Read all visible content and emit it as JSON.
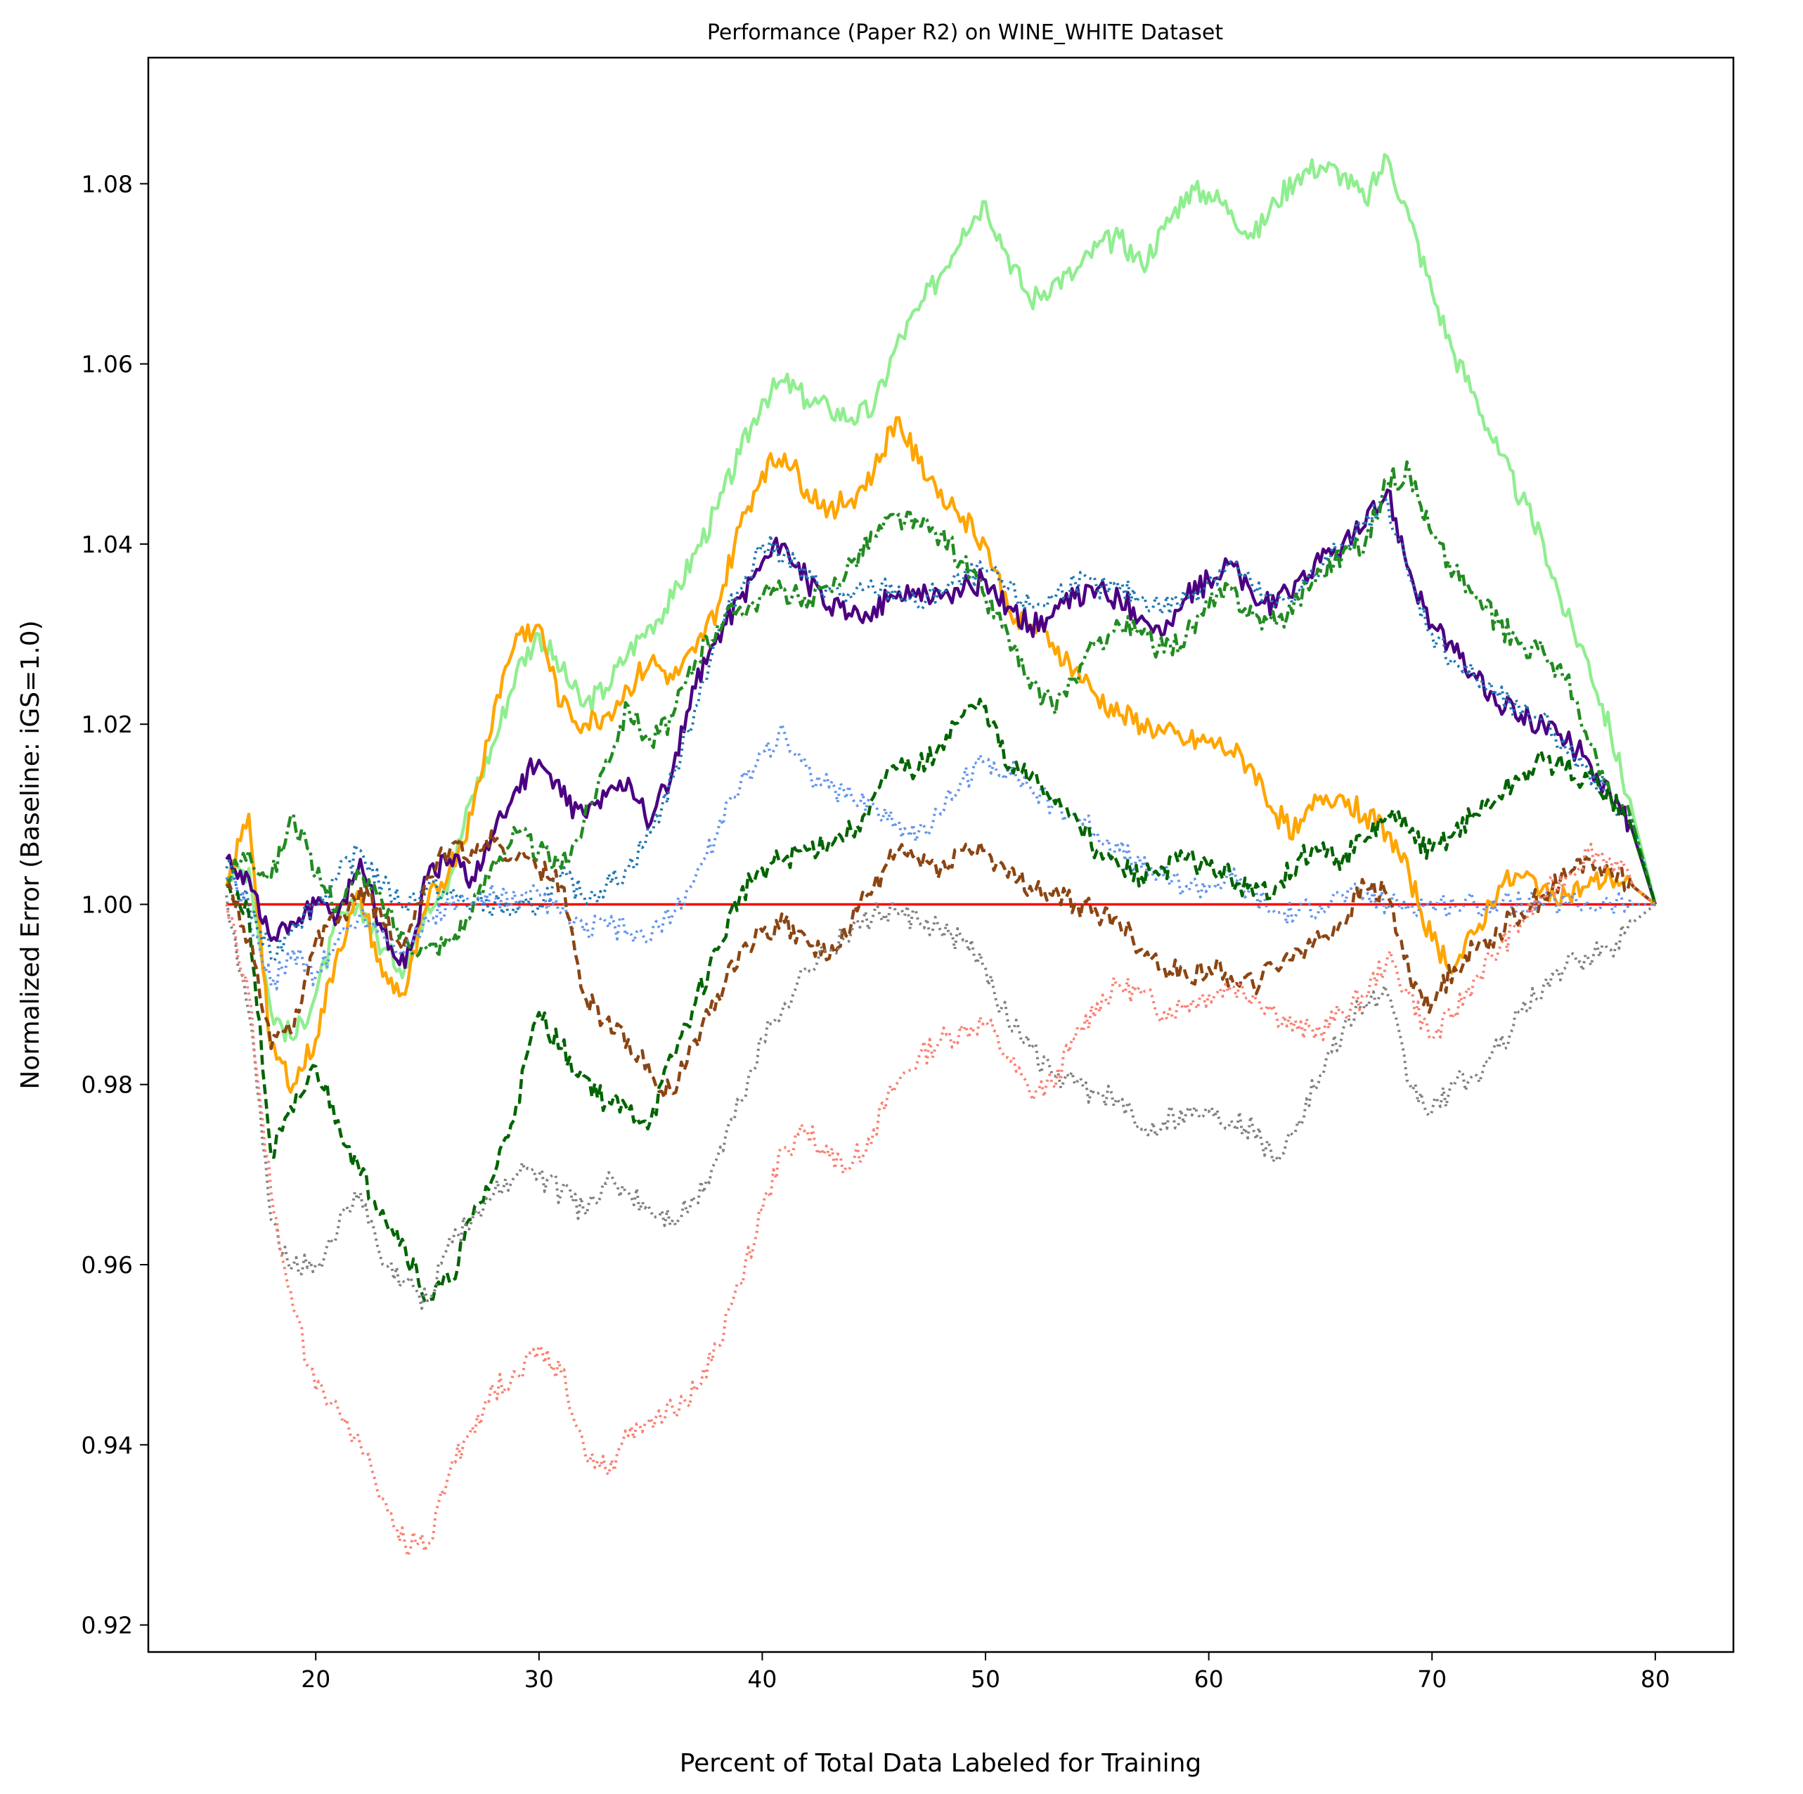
{
  "chart_data": {
    "type": "line",
    "title": "Performance (Paper R2) on WINE_WHITE Dataset",
    "xlabel": "Percent of Total Data Labeled for Training",
    "ylabel": "Normalized Error (Baseline: iGS=1.0)",
    "xlim": [
      12.5,
      83.5
    ],
    "ylim": [
      0.917,
      1.094
    ],
    "x_ticks": [
      20,
      30,
      40,
      50,
      60,
      70,
      80
    ],
    "x_tick_labels": [
      "20",
      "30",
      "40",
      "50",
      "60",
      "70",
      "80"
    ],
    "y_ticks": [
      0.92,
      0.94,
      0.96,
      0.98,
      1.0,
      1.02,
      1.04,
      1.06,
      1.08
    ],
    "y_tick_labels": [
      "0.92",
      "0.94",
      "0.96",
      "0.98",
      "1.00",
      "1.02",
      "1.04",
      "1.06",
      "1.08"
    ],
    "grid": false,
    "legend": "none",
    "x": [
      16,
      17,
      18,
      19,
      20,
      21,
      22,
      23,
      24,
      25,
      26,
      27,
      28,
      29,
      30,
      31,
      32,
      33,
      34,
      35,
      36,
      37,
      38,
      39,
      40,
      41,
      42,
      43,
      44,
      45,
      46,
      47,
      48,
      49,
      50,
      51,
      52,
      53,
      54,
      55,
      56,
      57,
      58,
      59,
      60,
      61,
      62,
      63,
      64,
      65,
      66,
      67,
      68,
      69,
      70,
      71,
      72,
      73,
      74,
      75,
      76,
      77,
      78,
      79,
      80
    ],
    "series": [
      {
        "color": "#ff0000",
        "dash": "solid",
        "width": 3.6,
        "values": [
          1.0,
          1.0,
          1.0,
          1.0,
          1.0,
          1.0,
          1.0,
          1.0,
          1.0,
          1.0,
          1.0,
          1.0,
          1.0,
          1.0,
          1.0,
          1.0,
          1.0,
          1.0,
          1.0,
          1.0,
          1.0,
          1.0,
          1.0,
          1.0,
          1.0,
          1.0,
          1.0,
          1.0,
          1.0,
          1.0,
          1.0,
          1.0,
          1.0,
          1.0,
          1.0,
          1.0,
          1.0,
          1.0,
          1.0,
          1.0,
          1.0,
          1.0,
          1.0,
          1.0,
          1.0,
          1.0,
          1.0,
          1.0,
          1.0,
          1.0,
          1.0,
          1.0,
          1.0,
          1.0,
          1.0,
          1.0,
          1.0,
          1.0,
          1.0,
          1.0,
          1.0,
          1.0,
          1.0,
          1.0,
          1.0
        ]
      },
      {
        "color": "#90ee90",
        "dash": "solid",
        "width": 4.5,
        "values": [
          1.003,
          1.004,
          0.988,
          0.985,
          0.99,
          0.998,
          1.0,
          0.995,
          0.993,
          1.0,
          1.003,
          1.012,
          1.018,
          1.026,
          1.03,
          1.026,
          1.022,
          1.024,
          1.028,
          1.031,
          1.034,
          1.039,
          1.044,
          1.05,
          1.056,
          1.058,
          1.056,
          1.055,
          1.054,
          1.055,
          1.062,
          1.066,
          1.07,
          1.075,
          1.078,
          1.072,
          1.067,
          1.069,
          1.07,
          1.073,
          1.074,
          1.071,
          1.075,
          1.079,
          1.079,
          1.077,
          1.074,
          1.078,
          1.081,
          1.082,
          1.081,
          1.078,
          1.083,
          1.076,
          1.068,
          1.061,
          1.056,
          1.05,
          1.045,
          1.04,
          1.032,
          1.027,
          1.019,
          1.01,
          1.0
        ]
      },
      {
        "color": "#ffa500",
        "dash": "solid",
        "width": 4.5,
        "values": [
          1.002,
          1.01,
          0.984,
          0.98,
          0.985,
          0.995,
          1.001,
          0.992,
          0.99,
          1.0,
          1.004,
          1.01,
          1.022,
          1.03,
          1.031,
          1.022,
          1.02,
          1.021,
          1.024,
          1.027,
          1.025,
          1.028,
          1.033,
          1.042,
          1.048,
          1.05,
          1.046,
          1.044,
          1.045,
          1.048,
          1.054,
          1.049,
          1.046,
          1.043,
          1.04,
          1.033,
          1.031,
          1.029,
          1.026,
          1.023,
          1.021,
          1.02,
          1.019,
          1.018,
          1.018,
          1.017,
          1.015,
          1.01,
          1.008,
          1.012,
          1.012,
          1.01,
          1.008,
          1.003,
          0.996,
          0.993,
          0.997,
          1.002,
          1.003,
          1.002,
          1.001,
          1.002,
          1.003,
          1.002,
          1.0
        ]
      },
      {
        "color": "#4b0082",
        "dash": "solid",
        "width": 4.5,
        "values": [
          1.005,
          1.003,
          0.996,
          0.998,
          1.0,
          0.999,
          1.005,
          0.997,
          0.993,
          1.003,
          1.005,
          1.003,
          1.008,
          1.013,
          1.016,
          1.012,
          1.01,
          1.012,
          1.014,
          1.009,
          1.015,
          1.024,
          1.03,
          1.034,
          1.038,
          1.04,
          1.036,
          1.033,
          1.032,
          1.033,
          1.034,
          1.035,
          1.034,
          1.035,
          1.036,
          1.033,
          1.031,
          1.032,
          1.034,
          1.035,
          1.034,
          1.032,
          1.03,
          1.034,
          1.036,
          1.038,
          1.034,
          1.033,
          1.036,
          1.038,
          1.04,
          1.042,
          1.046,
          1.037,
          1.031,
          1.028,
          1.025,
          1.022,
          1.021,
          1.02,
          1.018,
          1.016,
          1.012,
          1.008,
          1.0
        ]
      },
      {
        "color": "#1f77b4",
        "dash": "dot",
        "width": 4.0,
        "values": [
          1.004,
          1.0,
          0.994,
          0.998,
          1.0,
          1.003,
          1.006,
          1.002,
          1.0,
          1.002,
          1.001,
          1.0,
          1.0,
          0.999,
          1.0,
          1.003,
          1.001,
          1.002,
          1.004,
          1.008,
          1.014,
          1.022,
          1.03,
          1.035,
          1.04,
          1.039,
          1.036,
          1.035,
          1.034,
          1.035,
          1.035,
          1.033,
          1.035,
          1.036,
          1.037,
          1.035,
          1.033,
          1.034,
          1.036,
          1.035,
          1.035,
          1.034,
          1.033,
          1.034,
          1.036,
          1.038,
          1.035,
          1.033,
          1.035,
          1.037,
          1.04,
          1.042,
          1.045,
          1.036,
          1.03,
          1.027,
          1.025,
          1.023,
          1.021,
          1.021,
          1.017,
          1.015,
          1.012,
          1.009,
          1.0
        ]
      },
      {
        "color": "#228b22",
        "dash": "dashdot",
        "width": 4.5,
        "values": [
          1.003,
          1.006,
          1.003,
          1.01,
          1.003,
          1.0,
          1.003,
          1.0,
          0.996,
          0.995,
          0.996,
          0.999,
          1.005,
          1.008,
          1.006,
          1.004,
          1.009,
          1.016,
          1.022,
          1.018,
          1.021,
          1.027,
          1.031,
          1.033,
          1.034,
          1.035,
          1.033,
          1.035,
          1.038,
          1.041,
          1.043,
          1.042,
          1.041,
          1.038,
          1.034,
          1.03,
          1.024,
          1.022,
          1.025,
          1.029,
          1.031,
          1.03,
          1.028,
          1.03,
          1.033,
          1.035,
          1.032,
          1.031,
          1.034,
          1.037,
          1.039,
          1.04,
          1.047,
          1.048,
          1.041,
          1.037,
          1.034,
          1.031,
          1.029,
          1.028,
          1.025,
          1.018,
          1.012,
          1.009,
          1.0
        ]
      },
      {
        "color": "#6495ed",
        "dash": "dot",
        "width": 4.0,
        "values": [
          1.003,
          0.999,
          0.991,
          0.995,
          0.992,
          0.996,
          0.999,
          0.997,
          0.995,
          0.998,
          1.0,
          1.0,
          1.001,
          1.0,
          1.001,
          0.999,
          0.997,
          0.998,
          0.997,
          0.996,
          0.999,
          1.003,
          1.008,
          1.013,
          1.017,
          1.019,
          1.015,
          1.013,
          1.012,
          1.011,
          1.009,
          1.008,
          1.01,
          1.014,
          1.016,
          1.015,
          1.013,
          1.011,
          1.01,
          1.008,
          1.006,
          1.004,
          1.003,
          1.002,
          1.002,
          1.003,
          1.001,
          0.999,
          0.999,
          1.0,
          1.001,
          1.001,
          1.0,
          1.0,
          1.0,
          1.0,
          1.0,
          1.0,
          1.0,
          1.0,
          1.0,
          1.0,
          1.0,
          1.0,
          1.0
        ]
      },
      {
        "color": "#006400",
        "dash": "dash",
        "width": 4.5,
        "values": [
          1.002,
          0.999,
          0.972,
          0.977,
          0.982,
          0.976,
          0.97,
          0.966,
          0.962,
          0.956,
          0.958,
          0.965,
          0.97,
          0.978,
          0.988,
          0.984,
          0.981,
          0.978,
          0.977,
          0.976,
          0.983,
          0.989,
          0.995,
          1.001,
          1.004,
          1.005,
          1.006,
          1.007,
          1.008,
          1.012,
          1.015,
          1.015,
          1.018,
          1.021,
          1.022,
          1.015,
          1.014,
          1.012,
          1.01,
          1.006,
          1.004,
          1.003,
          1.004,
          1.005,
          1.004,
          1.003,
          1.001,
          1.002,
          1.005,
          1.006,
          1.005,
          1.007,
          1.01,
          1.008,
          1.006,
          1.008,
          1.01,
          1.012,
          1.014,
          1.016,
          1.015,
          1.014,
          1.012,
          1.008,
          1.0
        ]
      },
      {
        "color": "#8b4513",
        "dash": "dash",
        "width": 4.5,
        "values": [
          1.002,
          0.996,
          0.984,
          0.986,
          0.996,
          0.998,
          1.002,
          0.998,
          0.996,
          1.003,
          1.006,
          1.006,
          1.007,
          1.005,
          1.004,
          1.002,
          0.99,
          0.987,
          0.985,
          0.981,
          0.979,
          0.985,
          0.99,
          0.995,
          0.997,
          0.998,
          0.996,
          0.994,
          0.998,
          1.002,
          1.006,
          1.005,
          1.004,
          1.006,
          1.006,
          1.003,
          1.002,
          1.001,
          1.0,
          0.999,
          0.998,
          0.995,
          0.993,
          0.992,
          0.993,
          0.992,
          0.991,
          0.993,
          0.995,
          0.996,
          0.998,
          1.002,
          1.001,
          0.992,
          0.989,
          0.993,
          0.995,
          0.997,
          0.999,
          1.001,
          1.003,
          1.005,
          1.004,
          1.002,
          1.0
        ]
      },
      {
        "color": "#808080",
        "dash": "dot",
        "width": 4.0,
        "values": [
          1.001,
          0.988,
          0.965,
          0.96,
          0.96,
          0.964,
          0.968,
          0.96,
          0.958,
          0.956,
          0.963,
          0.965,
          0.968,
          0.97,
          0.97,
          0.968,
          0.966,
          0.969,
          0.968,
          0.966,
          0.965,
          0.967,
          0.972,
          0.978,
          0.985,
          0.989,
          0.993,
          0.995,
          0.997,
          0.999,
          0.999,
          0.998,
          0.997,
          0.996,
          0.993,
          0.987,
          0.984,
          0.981,
          0.98,
          0.979,
          0.978,
          0.975,
          0.976,
          0.977,
          0.977,
          0.976,
          0.975,
          0.972,
          0.976,
          0.981,
          0.986,
          0.989,
          0.99,
          0.98,
          0.977,
          0.98,
          0.981,
          0.984,
          0.988,
          0.991,
          0.993,
          0.994,
          0.995,
          0.998,
          1.0
        ]
      },
      {
        "color": "#fa8072",
        "dash": "dot",
        "width": 4.0,
        "values": [
          1.0,
          0.99,
          0.968,
          0.955,
          0.946,
          0.944,
          0.94,
          0.934,
          0.929,
          0.929,
          0.937,
          0.942,
          0.946,
          0.948,
          0.951,
          0.948,
          0.94,
          0.937,
          0.941,
          0.943,
          0.944,
          0.946,
          0.951,
          0.958,
          0.966,
          0.973,
          0.975,
          0.972,
          0.971,
          0.975,
          0.98,
          0.983,
          0.985,
          0.986,
          0.987,
          0.983,
          0.979,
          0.98,
          0.985,
          0.989,
          0.991,
          0.99,
          0.988,
          0.989,
          0.99,
          0.991,
          0.99,
          0.988,
          0.986,
          0.986,
          0.988,
          0.99,
          0.994,
          0.99,
          0.985,
          0.988,
          0.992,
          0.995,
          0.998,
          1.001,
          1.003,
          1.006,
          1.005,
          1.002,
          1.0
        ]
      }
    ]
  }
}
